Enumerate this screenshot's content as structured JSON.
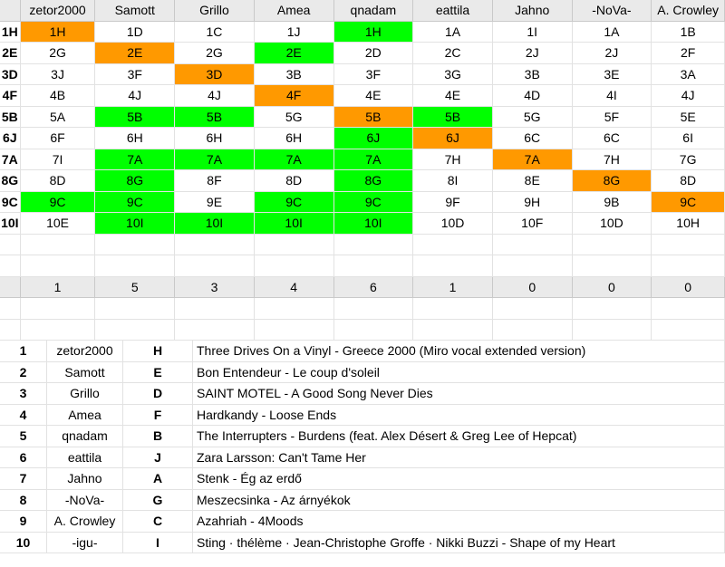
{
  "colors": {
    "green": "#00ff00",
    "orange": "#ff9900",
    "header_bg": "#eaeaea"
  },
  "header": [
    "zetor2000",
    "Samott",
    "Grillo",
    "Amea",
    "qnadam",
    "eattila",
    "Jahno",
    "-NoVa-",
    "A. Crowley"
  ],
  "grid": [
    {
      "label": "1H",
      "cells": [
        {
          "v": "1H",
          "c": "orange"
        },
        {
          "v": "1D"
        },
        {
          "v": "1C"
        },
        {
          "v": "1J"
        },
        {
          "v": "1H",
          "c": "green"
        },
        {
          "v": "1A"
        },
        {
          "v": "1I"
        },
        {
          "v": "1A"
        },
        {
          "v": "1B"
        }
      ]
    },
    {
      "label": "2E",
      "cells": [
        {
          "v": "2G"
        },
        {
          "v": "2E",
          "c": "orange"
        },
        {
          "v": "2G"
        },
        {
          "v": "2E",
          "c": "green"
        },
        {
          "v": "2D"
        },
        {
          "v": "2C"
        },
        {
          "v": "2J"
        },
        {
          "v": "2J"
        },
        {
          "v": "2F"
        }
      ]
    },
    {
      "label": "3D",
      "cells": [
        {
          "v": "3J"
        },
        {
          "v": "3F"
        },
        {
          "v": "3D",
          "c": "orange"
        },
        {
          "v": "3B"
        },
        {
          "v": "3F"
        },
        {
          "v": "3G"
        },
        {
          "v": "3B"
        },
        {
          "v": "3E"
        },
        {
          "v": "3A"
        }
      ]
    },
    {
      "label": "4F",
      "cells": [
        {
          "v": "4B"
        },
        {
          "v": "4J"
        },
        {
          "v": "4J"
        },
        {
          "v": "4F",
          "c": "orange"
        },
        {
          "v": "4E"
        },
        {
          "v": "4E"
        },
        {
          "v": "4D"
        },
        {
          "v": "4I"
        },
        {
          "v": "4J"
        }
      ]
    },
    {
      "label": "5B",
      "cells": [
        {
          "v": "5A"
        },
        {
          "v": "5B",
          "c": "green"
        },
        {
          "v": "5B",
          "c": "green"
        },
        {
          "v": "5G"
        },
        {
          "v": "5B",
          "c": "orange"
        },
        {
          "v": "5B",
          "c": "green"
        },
        {
          "v": "5G"
        },
        {
          "v": "5F"
        },
        {
          "v": "5E"
        }
      ]
    },
    {
      "label": "6J",
      "cells": [
        {
          "v": "6F"
        },
        {
          "v": "6H"
        },
        {
          "v": "6H"
        },
        {
          "v": "6H"
        },
        {
          "v": "6J",
          "c": "green"
        },
        {
          "v": "6J",
          "c": "orange"
        },
        {
          "v": "6C"
        },
        {
          "v": "6C"
        },
        {
          "v": "6I"
        }
      ]
    },
    {
      "label": "7A",
      "cells": [
        {
          "v": "7I"
        },
        {
          "v": "7A",
          "c": "green"
        },
        {
          "v": "7A",
          "c": "green"
        },
        {
          "v": "7A",
          "c": "green"
        },
        {
          "v": "7A",
          "c": "green"
        },
        {
          "v": "7H"
        },
        {
          "v": "7A",
          "c": "orange"
        },
        {
          "v": "7H"
        },
        {
          "v": "7G"
        }
      ]
    },
    {
      "label": "8G",
      "cells": [
        {
          "v": "8D"
        },
        {
          "v": "8G",
          "c": "green"
        },
        {
          "v": "8F"
        },
        {
          "v": "8D"
        },
        {
          "v": "8G",
          "c": "green"
        },
        {
          "v": "8I"
        },
        {
          "v": "8E"
        },
        {
          "v": "8G",
          "c": "orange"
        },
        {
          "v": "8D"
        }
      ]
    },
    {
      "label": "9C",
      "cells": [
        {
          "v": "9C",
          "c": "green"
        },
        {
          "v": "9C",
          "c": "green"
        },
        {
          "v": "9E"
        },
        {
          "v": "9C",
          "c": "green"
        },
        {
          "v": "9C",
          "c": "green"
        },
        {
          "v": "9F"
        },
        {
          "v": "9H"
        },
        {
          "v": "9B"
        },
        {
          "v": "9C",
          "c": "orange"
        }
      ]
    },
    {
      "label": "10I",
      "cells": [
        {
          "v": "10E"
        },
        {
          "v": "10I",
          "c": "green"
        },
        {
          "v": "10I",
          "c": "green"
        },
        {
          "v": "10I",
          "c": "green"
        },
        {
          "v": "10I",
          "c": "green"
        },
        {
          "v": "10D"
        },
        {
          "v": "10F"
        },
        {
          "v": "10D"
        },
        {
          "v": "10H"
        }
      ]
    }
  ],
  "totals": [
    "1",
    "5",
    "3",
    "4",
    "6",
    "1",
    "0",
    "0",
    "0"
  ],
  "list": [
    {
      "n": "1",
      "name": "zetor2000",
      "letter": "H",
      "song": "Three Drives On a Vinyl - Greece 2000 (Miro vocal extended version)"
    },
    {
      "n": "2",
      "name": "Samott",
      "letter": "E",
      "song": "Bon Entendeur - Le coup d'soleil"
    },
    {
      "n": "3",
      "name": "Grillo",
      "letter": "D",
      "song": "SAINT MOTEL - A Good Song Never Dies"
    },
    {
      "n": "4",
      "name": "Amea",
      "letter": "F",
      "song": "Hardkandy - Loose Ends"
    },
    {
      "n": "5",
      "name": "qnadam",
      "letter": "B",
      "song": "The Interrupters - Burdens (feat. Alex Désert & Greg Lee of Hepcat)"
    },
    {
      "n": "6",
      "name": "eattila",
      "letter": "J",
      "song": "Zara Larsson: Can't Tame Her"
    },
    {
      "n": "7",
      "name": "Jahno",
      "letter": "A",
      "song": "Stenk - Ég az erdő"
    },
    {
      "n": "8",
      "name": "-NoVa-",
      "letter": "G",
      "song": "Meszecsinka - Az árnyékok"
    },
    {
      "n": "9",
      "name": "A. Crowley",
      "letter": "C",
      "song": "Azahriah - 4Moods"
    },
    {
      "n": "10",
      "name": "-igu-",
      "letter": "I",
      "song": "Sting · thélème · Jean-Christophe Groffe · Nikki Buzzi - Shape of my Heart"
    }
  ]
}
